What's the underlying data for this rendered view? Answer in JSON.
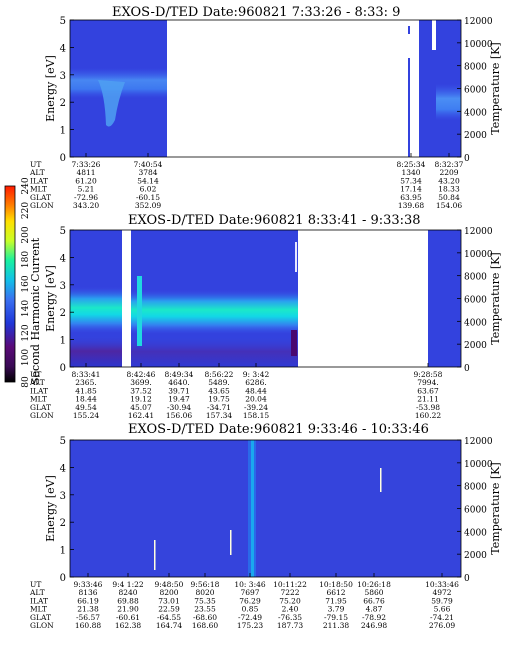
{
  "colorbar": {
    "label": "Second Harmonic Current",
    "ticks": [
      "80",
      "100",
      "120",
      "140",
      "160",
      "180",
      "200",
      "220",
      "240"
    ],
    "colors": [
      "#000000",
      "#5a0a78",
      "#1e2ad2",
      "#3a6cf0",
      "#12c8e6",
      "#18f0a0",
      "#c8ff28",
      "#ffe000",
      "#ff7800",
      "#ff2000"
    ]
  },
  "panels": [
    {
      "title": "EXOS-D/TED   Date:960821  7:33:26 - 8:33: 9",
      "ylabel_left": "Energy [eV]",
      "ylabel_right": "Temperature [K]",
      "ylim_left": [
        0,
        5
      ],
      "ylim_right": [
        0,
        12000
      ],
      "left_ticks": [
        "0",
        "1",
        "2",
        "3",
        "4",
        "5"
      ],
      "right_ticks": [
        "0",
        "2000",
        "4000",
        "6000",
        "8000",
        "10000",
        "12000"
      ],
      "row_labels": [
        "UT",
        "ALT",
        "ILAT",
        "MLT",
        "GLAT",
        "GLON"
      ],
      "columns": [
        {
          "UT": "7:33:26",
          "ALT": "4811",
          "ILAT": "61.20",
          "MLT": "5.21",
          "GLAT": "-72.96",
          "GLON": "343.20"
        },
        {
          "UT": "7:40:54",
          "ALT": "3784",
          "ILAT": "54.14",
          "MLT": "6.02",
          "GLAT": "-60.15",
          "GLON": "352.09"
        },
        {
          "UT": "8:25:34",
          "ALT": "1340",
          "ILAT": "57.34",
          "MLT": "17.14",
          "GLAT": "63.95",
          "GLON": "139.68"
        },
        {
          "UT": "8:32:37",
          "ALT": "2209",
          "ILAT": "43.20",
          "MLT": "18.33",
          "GLAT": "50.84",
          "GLON": "154.06"
        }
      ]
    },
    {
      "title": "EXOS-D/TED   Date:960821  8:33:41 - 9:33:38",
      "ylabel_left": "Energy [eV]",
      "ylabel_right": "Temperature [K]",
      "ylim_left": [
        0,
        5
      ],
      "ylim_right": [
        0,
        12000
      ],
      "left_ticks": [
        "0",
        "1",
        "2",
        "3",
        "4",
        "5"
      ],
      "right_ticks": [
        "0",
        "2000",
        "4000",
        "6000",
        "8000",
        "10000",
        "12000"
      ],
      "row_labels": [
        "UT",
        "ALT",
        "ILAT",
        "MLT",
        "GLAT",
        "GLON"
      ],
      "columns": [
        {
          "UT": "8:33:41",
          "ALT": "2365.",
          "ILAT": "41.85",
          "MLT": "18.44",
          "GLAT": "49.54",
          "GLON": "155.24"
        },
        {
          "UT": "8:42:46",
          "ALT": "3699.",
          "ILAT": "37.52",
          "MLT": "19.12",
          "GLAT": "45.07",
          "GLON": "162.41"
        },
        {
          "UT": "8:49:34",
          "ALT": "4640.",
          "ILAT": "39.71",
          "MLT": "19.47",
          "GLAT": "-30.94",
          "GLON": "156.06"
        },
        {
          "UT": "8:56:22",
          "ALT": "5489.",
          "ILAT": "43.65",
          "MLT": "19.75",
          "GLAT": "-34.71",
          "GLON": "157.34"
        },
        {
          "UT": "9: 3:42",
          "ALT": "6286.",
          "ILAT": "48.44",
          "MLT": "20.04",
          "GLAT": "-39.24",
          "GLON": "158.15"
        },
        {
          "UT": "9:28:58",
          "ALT": "7994.",
          "ILAT": "63.67",
          "MLT": "21.11",
          "GLAT": "-53.98",
          "GLON": "160.22"
        }
      ]
    },
    {
      "title": "EXOS-D/TED   Date:960821  9:33:46 - 10:33:46",
      "ylabel_left": "Energy [eV]",
      "ylabel_right": "Temperature [K]",
      "ylim_left": [
        0,
        5
      ],
      "ylim_right": [
        0,
        12000
      ],
      "left_ticks": [
        "0",
        "1",
        "2",
        "3",
        "4",
        "5"
      ],
      "right_ticks": [
        "0",
        "2000",
        "4000",
        "6000",
        "8000",
        "10000",
        "12000"
      ],
      "row_labels": [
        "UT",
        "ALT",
        "ILAT",
        "MLT",
        "GLAT",
        "GLON"
      ],
      "columns": [
        {
          "UT": "9:33:46",
          "ALT": "8136",
          "ILAT": "66.19",
          "MLT": "21.38",
          "GLAT": "-56.57",
          "GLON": "160.88"
        },
        {
          "UT": "9:4 1:22",
          "ALT": "8240",
          "ILAT": "69.88",
          "MLT": "21.90",
          "GLAT": "-60.61",
          "GLON": "162.38"
        },
        {
          "UT": "9:48:50",
          "ALT": "8200",
          "ILAT": "73.01",
          "MLT": "22.59",
          "GLAT": "-64.55",
          "GLON": "164.74"
        },
        {
          "UT": "9:56:18",
          "ALT": "8020",
          "ILAT": "75.35",
          "MLT": "23.55",
          "GLAT": "-68.60",
          "GLON": "168.60"
        },
        {
          "UT": "10: 3:46",
          "ALT": "7697",
          "ILAT": "76.29",
          "MLT": "0.85",
          "GLAT": "-72.49",
          "GLON": "175.23"
        },
        {
          "UT": "10:11:22",
          "ALT": "7222",
          "ILAT": "75.20",
          "MLT": "2.40",
          "GLAT": "-76.35",
          "GLON": "187.73"
        },
        {
          "UT": "10:18:50",
          "ALT": "6612",
          "ILAT": "71.95",
          "MLT": "3.79",
          "GLAT": "-79.15",
          "GLON": "211.38"
        },
        {
          "UT": "10:26:18",
          "ALT": "5860",
          "ILAT": "66.76",
          "MLT": "4.87",
          "GLAT": "-78.92",
          "GLON": "246.98"
        },
        {
          "UT": "10:33:46",
          "ALT": "4972",
          "ILAT": "59.79",
          "MLT": "5.66",
          "GLAT": "-74.21",
          "GLON": "276.09"
        }
      ]
    }
  ],
  "chart_data": [
    {
      "type": "heatmap",
      "title": "EXOS-D/TED   Date:960821  7:33:26 - 8:33: 9",
      "xlabel": "",
      "ylabel": "Energy [eV]",
      "y2label": "Temperature [K]",
      "ylim": [
        0,
        5
      ],
      "y2lim": [
        0,
        12000
      ],
      "x_ticks": [
        "7:33:26",
        "7:40:54",
        "8:25:34",
        "8:32:37"
      ],
      "colorbar": {
        "label": "Second Harmonic Current",
        "range": [
          80,
          240
        ]
      },
      "data_blocks": [
        {
          "x_range": [
            "7:33:26",
            "7:41:00"
          ],
          "y_range": [
            0,
            5
          ],
          "peak_energy_ev": 2.8
        },
        {
          "x_range": [
            "8:25:30",
            "8:26:00"
          ],
          "y_range": [
            0,
            5
          ]
        },
        {
          "x_range": [
            "8:27:30",
            "8:33:09"
          ],
          "y_range": [
            0,
            5
          ],
          "peak_energy_ev": 2.3
        }
      ]
    },
    {
      "type": "heatmap",
      "title": "EXOS-D/TED   Date:960821  8:33:41 - 9:33:38",
      "xlabel": "",
      "ylabel": "Energy [eV]",
      "y2label": "Temperature [K]",
      "ylim": [
        0,
        5
      ],
      "y2lim": [
        0,
        12000
      ],
      "x_ticks": [
        "8:33:41",
        "8:42:46",
        "8:49:34",
        "8:56:22",
        "9: 3:42",
        "9:28:58"
      ],
      "colorbar": {
        "label": "Second Harmonic Current",
        "range": [
          80,
          240
        ]
      },
      "data_blocks": [
        {
          "x_range": [
            "8:33:41",
            "8:41:40"
          ],
          "y_range": [
            0,
            5
          ],
          "peak_energy_ev": 2.0
        },
        {
          "x_range": [
            "8:42:50",
            "9:05:30"
          ],
          "y_range": [
            0,
            5
          ],
          "peak_energy_ev": 2.0
        },
        {
          "x_range": [
            "9:28:30",
            "9:33:38"
          ],
          "y_range": [
            0,
            5
          ]
        }
      ]
    },
    {
      "type": "heatmap",
      "title": "EXOS-D/TED   Date:960821  9:33:46 - 10:33:46",
      "xlabel": "",
      "ylabel": "Energy [eV]",
      "y2label": "Temperature [K]",
      "ylim": [
        0,
        5
      ],
      "y2lim": [
        0,
        12000
      ],
      "x_ticks": [
        "9:33:46",
        "9:4 1:22",
        "9:48:50",
        "9:56:18",
        "10: 3:46",
        "10:11:22",
        "10:18:50",
        "10:26:18",
        "10:33:46"
      ],
      "colorbar": {
        "label": "Second Harmonic Current",
        "range": [
          80,
          240
        ]
      },
      "data_blocks": [
        {
          "x_range": [
            "9:33:46",
            "10:33:46"
          ],
          "y_range": [
            0,
            5
          ]
        }
      ]
    }
  ]
}
